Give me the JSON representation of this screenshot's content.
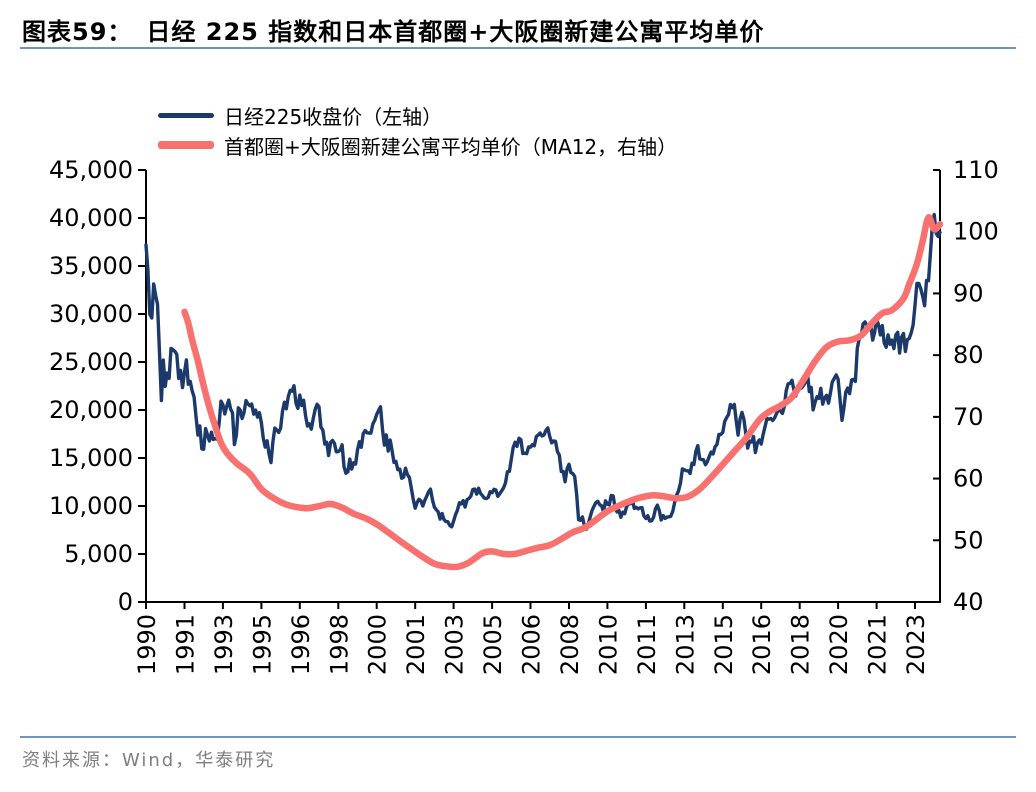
{
  "header": {
    "figure_label": "图表59：",
    "title": "日经 225 指数和日本首都圈+大阪圈新建公寓平均单价"
  },
  "legend": [
    {
      "label": "日经225收盘价（左轴）",
      "color": "#1b3a6b"
    },
    {
      "label": "首都圈+大阪圈新建公寓平均单价（MA12，右轴）",
      "color": "#f9716e"
    }
  ],
  "footer": {
    "source": "资料来源：Wind，华泰研究"
  },
  "colors": {
    "accent_rule": "#6f94c0",
    "axis": "#000000",
    "source_text": "#7f7f7f"
  },
  "chart_data": {
    "type": "line",
    "title": "日经 225 指数和日本首都圈+大阪圈新建公寓平均单价",
    "x_unit": "month",
    "x_range": {
      "start": "1990-01",
      "end": "2024-06"
    },
    "x_tick_every_months": 20,
    "x_tick_labels": [
      "1990",
      "1991",
      "1993",
      "1995",
      "1996",
      "1998",
      "2000",
      "2001",
      "2003",
      "2005",
      "2006",
      "2008",
      "2010",
      "2011",
      "2013",
      "2015",
      "2016",
      "2018",
      "2020",
      "2021",
      "2023"
    ],
    "grid": "off",
    "legend_position": "top-left",
    "axes": {
      "left": {
        "min": 0,
        "max": 45000,
        "step": 5000,
        "tick_labels": [
          "0",
          "5,000",
          "10,000",
          "15,000",
          "20,000",
          "25,000",
          "30,000",
          "35,000",
          "40,000",
          "45,000"
        ]
      },
      "right": {
        "min": 40,
        "max": 110,
        "step": 10,
        "tick_labels": [
          "40",
          "50",
          "60",
          "70",
          "80",
          "90",
          "100",
          "110"
        ]
      }
    },
    "series": [
      {
        "name": "日经225收盘价（左轴）",
        "axis": "left",
        "color": "#1b3a6b",
        "line_width": 3.4,
        "monthly_values": [
          37189,
          34592,
          29980,
          29585,
          33131,
          31940,
          31035,
          25978,
          20984,
          25194,
          22455,
          23849,
          23293,
          26409,
          26292,
          26111,
          25790,
          23291,
          24121,
          22336,
          23916,
          25222,
          22687,
          22984,
          22023,
          21339,
          19346,
          17391,
          18348,
          15952,
          15910,
          18061,
          17399,
          16767,
          17684,
          16925,
          17024,
          16953,
          18591,
          20919,
          20552,
          19590,
          20380,
          21027,
          20106,
          19703,
          16406,
          17417,
          20229,
          19997,
          19112,
          19725,
          20974,
          20644,
          20449,
          20629,
          19564,
          19990,
          19260,
          19723,
          18650,
          17053,
          16140,
          16806,
          15437,
          14517,
          16685,
          18117,
          17913,
          17655,
          18109,
          19868,
          20813,
          20126,
          21407,
          22041,
          21956,
          22531,
          20693,
          20167,
          21556,
          20467,
          21020,
          19361,
          18330,
          18557,
          18003,
          19151,
          20069,
          20605,
          20331,
          18229,
          17888,
          16459,
          16636,
          15259,
          16628,
          16832,
          16527,
          15641,
          15671,
          15830,
          16379,
          14108,
          13406,
          13565,
          14884,
          13842,
          14499,
          14368,
          15837,
          16702,
          16112,
          17530,
          17861,
          17626,
          17605,
          17582,
          18558,
          18934,
          19539,
          19959,
          20337,
          17973,
          16332,
          17411,
          15727,
          16861,
          15747,
          14539,
          14648,
          13786,
          13844,
          12884,
          12999,
          13934,
          13262,
          12969,
          11861,
          10713,
          9775,
          10366,
          10697,
          10543,
          9998,
          10588,
          11025,
          11492,
          11764,
          10622,
          9878,
          9619,
          9383,
          8640,
          9216,
          8579,
          8372,
          8363,
          7973,
          7831,
          8425,
          9083,
          9563,
          10343,
          10219,
          10559,
          9895,
          10677,
          10784,
          11041,
          11715,
          11761,
          11236,
          11859,
          11326,
          11082,
          10824,
          10772,
          10899,
          11489,
          11387,
          11740,
          11669,
          11009,
          11276,
          11584,
          11900,
          12414,
          13574,
          13606,
          14872,
          16111,
          16649,
          16205,
          17060,
          16906,
          15467,
          15505,
          15457,
          16141,
          16128,
          16399,
          16274,
          17226,
          17383,
          17604,
          17288,
          17400,
          17876,
          18138,
          17249,
          16569,
          16786,
          16738,
          15681,
          15308,
          13592,
          13603,
          12526,
          13850,
          14339,
          13481,
          13377,
          13073,
          11260,
          8577,
          8512,
          8860,
          7994,
          7568,
          8110,
          8828,
          9523,
          9958,
          10357,
          10493,
          10133,
          10035,
          9346,
          10546,
          10198,
          10126,
          11090,
          11057,
          9769,
          9383,
          9537,
          8824,
          9369,
          9202,
          9937,
          10229,
          10238,
          10624,
          9755,
          9850,
          9694,
          9816,
          9833,
          8955,
          8700,
          8988,
          8435,
          8455,
          8803,
          9723,
          10084,
          9521,
          8543,
          9007,
          8695,
          8840,
          8870,
          8928,
          9446,
          10395,
          11139,
          11559,
          12398,
          13861,
          13775,
          13677,
          13668,
          13389,
          14456,
          14328,
          15662,
          16291,
          14915,
          14841,
          14828,
          14304,
          14632,
          15162,
          15621,
          15425,
          16174,
          16414,
          17460,
          17451,
          17674,
          18798,
          19207,
          19520,
          20563,
          20236,
          20585,
          18890,
          17388,
          19083,
          19747,
          19034,
          17518,
          16027,
          16759,
          16666,
          17235,
          15576,
          16569,
          16887,
          16450,
          17425,
          18308,
          19114,
          19041,
          19119,
          18909,
          19197,
          19651,
          20033,
          19925,
          19646,
          20356,
          22012,
          22725,
          22765,
          23098,
          22068,
          21454,
          22468,
          22202,
          22305,
          22554,
          22865,
          24120,
          21920,
          22351,
          20015,
          20773,
          21385,
          21206,
          22259,
          20601,
          21276,
          21522,
          20704,
          21756,
          22927,
          23294,
          23657,
          23205,
          21143,
          18917,
          20194,
          21878,
          22288,
          21710,
          23140,
          23185,
          22977,
          26434,
          27444,
          27663,
          28966,
          29179,
          28813,
          28860,
          28792,
          27284,
          28090,
          29453,
          28893,
          27822,
          28792,
          27002,
          26527,
          27821,
          26848,
          27280,
          26393,
          27802,
          28092,
          25937,
          27587,
          27969,
          26095,
          27327,
          27446,
          28041,
          28856,
          30888,
          33189,
          33172,
          32619,
          31858,
          30859,
          33487,
          33464,
          36287,
          39166,
          40369,
          38406,
          38074,
          38500
        ]
      },
      {
        "name": "首都圈+大阪圈新建公寓平均单价（MA12，右轴）",
        "axis": "right",
        "color": "#f9716e",
        "line_width": 6.5,
        "points_month_value": [
          [
            20,
            87.0
          ],
          [
            22,
            85.2
          ],
          [
            24,
            82.5
          ],
          [
            27,
            79.0
          ],
          [
            30,
            75.0
          ],
          [
            33,
            71.5
          ],
          [
            36,
            68.5
          ],
          [
            39,
            65.8
          ],
          [
            42,
            64.2
          ],
          [
            47,
            62.5
          ],
          [
            54,
            60.8
          ],
          [
            60,
            58.3
          ],
          [
            66,
            56.9
          ],
          [
            72,
            55.9
          ],
          [
            78,
            55.4
          ],
          [
            84,
            55.2
          ],
          [
            91,
            55.6
          ],
          [
            96,
            55.9
          ],
          [
            102,
            55.3
          ],
          [
            108,
            54.3
          ],
          [
            114,
            53.6
          ],
          [
            120,
            52.6
          ],
          [
            126,
            51.3
          ],
          [
            132,
            49.9
          ],
          [
            138,
            48.6
          ],
          [
            144,
            47.3
          ],
          [
            150,
            46.2
          ],
          [
            156,
            45.8
          ],
          [
            162,
            45.7
          ],
          [
            168,
            46.4
          ],
          [
            175,
            47.9
          ],
          [
            180,
            48.2
          ],
          [
            186,
            47.8
          ],
          [
            192,
            47.8
          ],
          [
            198,
            48.3
          ],
          [
            204,
            48.8
          ],
          [
            210,
            49.2
          ],
          [
            216,
            50.2
          ],
          [
            222,
            51.3
          ],
          [
            228,
            52.0
          ],
          [
            234,
            53.3
          ],
          [
            240,
            54.7
          ],
          [
            246,
            55.6
          ],
          [
            252,
            56.4
          ],
          [
            258,
            57.0
          ],
          [
            264,
            57.3
          ],
          [
            270,
            57.1
          ],
          [
            276,
            56.8
          ],
          [
            282,
            57.1
          ],
          [
            288,
            58.3
          ],
          [
            294,
            60.2
          ],
          [
            300,
            62.3
          ],
          [
            306,
            64.4
          ],
          [
            312,
            66.5
          ],
          [
            319,
            69.5
          ],
          [
            324,
            70.8
          ],
          [
            330,
            71.8
          ],
          [
            336,
            73.2
          ],
          [
            343,
            76.5
          ],
          [
            348,
            79.0
          ],
          [
            354,
            81.3
          ],
          [
            360,
            82.2
          ],
          [
            366,
            82.4
          ],
          [
            372,
            83.2
          ],
          [
            378,
            85.3
          ],
          [
            383,
            86.8
          ],
          [
            388,
            87.3
          ],
          [
            394,
            89.2
          ],
          [
            397,
            91.5
          ],
          [
            401,
            94.8
          ],
          [
            404,
            98.5
          ],
          [
            407,
            102.3
          ],
          [
            410,
            100.4
          ],
          [
            413,
            101.2
          ]
        ]
      }
    ]
  }
}
